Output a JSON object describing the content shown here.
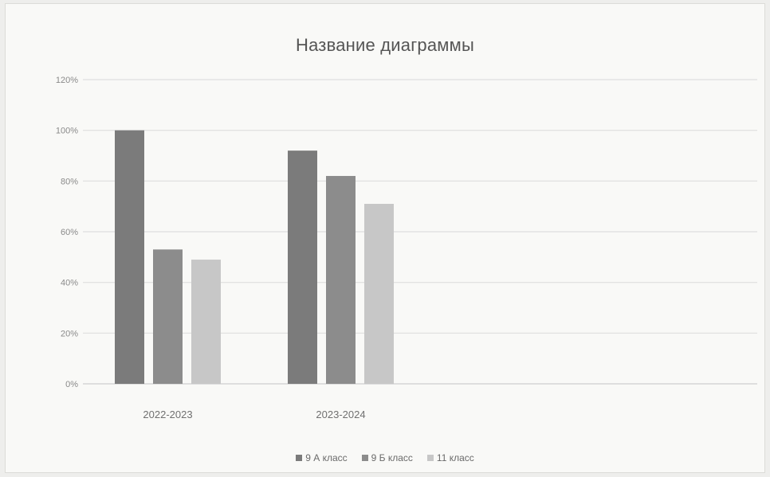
{
  "chart_data": {
    "type": "bar",
    "title": "Название диаграммы",
    "xlabel": "",
    "ylabel": "",
    "categories": [
      "2022-2023",
      "2023-2024"
    ],
    "series": [
      {
        "name": "9 А класс",
        "values": [
          1.0,
          0.92
        ],
        "color": "#7b7b7b"
      },
      {
        "name": "9 Б класс",
        "values": [
          0.53,
          0.82
        ],
        "color": "#8c8c8c"
      },
      {
        "name": "11 класс",
        "values": [
          0.49,
          0.71
        ],
        "color": "#c7c7c7"
      }
    ],
    "ylim": [
      0,
      1.2
    ],
    "yticks": [
      {
        "value": 0,
        "label": "0%"
      },
      {
        "value": 0.2,
        "label": "20%"
      },
      {
        "value": 0.4,
        "label": "40%"
      },
      {
        "value": 0.6,
        "label": "60%"
      },
      {
        "value": 0.8,
        "label": "80%"
      },
      {
        "value": 1.0,
        "label": "100%"
      },
      {
        "value": 1.2,
        "label": "120%"
      }
    ],
    "grid": true,
    "legend_position": "bottom"
  }
}
